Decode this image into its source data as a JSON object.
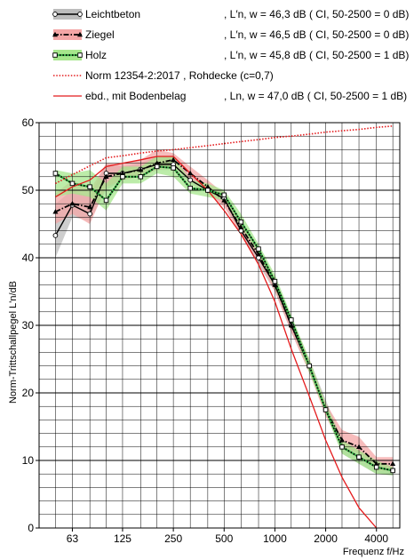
{
  "chart_data": {
    "type": "line",
    "xlabel": "Frequenz f/Hz",
    "ylabel": "Norm-Trittschallpegel L'n/dB",
    "x_scale": "log",
    "xlim": [
      40,
      5500
    ],
    "ylim": [
      0,
      60
    ],
    "grid": true,
    "x_ticks": [
      63,
      125,
      250,
      500,
      1000,
      2000,
      4000
    ],
    "x_tick_labels": [
      "63",
      "125",
      "250",
      "500",
      "1000",
      "2000",
      "4000"
    ],
    "y_ticks": [
      0,
      10,
      20,
      30,
      40,
      50,
      60
    ],
    "legend_position": "top",
    "frequencies": [
      50,
      63,
      80,
      100,
      125,
      160,
      200,
      250,
      315,
      400,
      500,
      630,
      800,
      1000,
      1250,
      1600,
      2000,
      2500,
      3150,
      4000,
      5000
    ],
    "series": [
      {
        "name": "Leichtbeton",
        "legend_value": ", L′n, w = 46,3 dB ( CI, 50-2500 = 0 dB)",
        "color": "#000000",
        "band_color": "#bdbdbd",
        "style": "solid",
        "marker": "open-circle",
        "values": [
          43.3,
          47.8,
          46.5,
          52.5,
          52.5,
          53.1,
          53.8,
          53.8,
          51.5,
          50.0,
          48.8,
          44.0,
          40.0,
          36.0,
          30.0,
          24.0,
          17.5,
          12.0,
          10.5,
          9.0,
          8.5
        ],
        "band_low": [
          40.0,
          46.0,
          45.5,
          50.0,
          51.5,
          52.0,
          53.0,
          53.0,
          51.0,
          49.5,
          48.0,
          43.5,
          39.0,
          35.0,
          29.0,
          23.0,
          17.0,
          11.0,
          9.5,
          8.0,
          7.8
        ],
        "band_high": [
          48.0,
          50.0,
          49.0,
          54.0,
          53.5,
          54.0,
          55.0,
          55.0,
          52.0,
          50.5,
          49.5,
          45.0,
          41.0,
          37.0,
          31.0,
          25.0,
          19.0,
          13.0,
          11.5,
          10.0,
          9.0
        ]
      },
      {
        "name": "Ziegel",
        "legend_value": ", L′n, w = 46,5 dB ( CI, 50-2500 = 0 dB)",
        "color": "#000000",
        "band_color": "#f4a6a6",
        "style": "dashdot",
        "marker": "filled-triangle",
        "values": [
          46.8,
          48.0,
          47.5,
          52.0,
          52.5,
          53.0,
          54.0,
          54.5,
          52.5,
          50.5,
          48.5,
          44.5,
          40.5,
          36.0,
          30.0,
          24.0,
          17.5,
          13.0,
          12.0,
          9.5,
          9.5
        ],
        "band_low": [
          45.0,
          46.5,
          45.0,
          50.5,
          51.5,
          52.0,
          53.0,
          53.5,
          51.5,
          49.5,
          47.5,
          43.5,
          39.5,
          35.0,
          29.0,
          23.0,
          16.5,
          12.0,
          11.0,
          8.5,
          8.5
        ],
        "band_high": [
          49.5,
          51.5,
          50.0,
          54.0,
          54.0,
          54.5,
          56.0,
          55.5,
          53.5,
          51.5,
          49.5,
          45.5,
          41.5,
          37.0,
          31.0,
          25.0,
          18.5,
          14.5,
          13.5,
          10.5,
          10.5
        ]
      },
      {
        "name": "Holz",
        "legend_value": ", L′n, w = 45,8 dB ( CI, 50-2500 = 1 dB)",
        "color": "#000000",
        "accent_color": "#3cb44b",
        "band_color": "#a6e68c",
        "style": "dotted",
        "marker": "open-square",
        "values": [
          52.5,
          51.0,
          50.5,
          48.5,
          52.0,
          52.0,
          53.5,
          53.3,
          50.3,
          50.0,
          49.3,
          45.3,
          41.3,
          36.5,
          30.8,
          24.0,
          17.5,
          12.0,
          10.5,
          9.0,
          8.5
        ],
        "band_low": [
          49.0,
          49.5,
          49.0,
          47.0,
          51.0,
          51.0,
          52.5,
          52.0,
          49.5,
          49.0,
          48.5,
          44.5,
          40.5,
          35.5,
          30.0,
          23.0,
          17.0,
          11.0,
          9.5,
          8.0,
          7.8
        ],
        "band_high": [
          53.0,
          52.5,
          53.0,
          51.0,
          53.5,
          53.5,
          55.0,
          55.0,
          51.5,
          51.0,
          50.0,
          46.5,
          42.0,
          37.5,
          31.5,
          25.0,
          18.5,
          13.0,
          11.5,
          10.0,
          9.0
        ]
      },
      {
        "name": "Norm 12354-2:2017 , Rohdecke (c=0,7)",
        "legend_value": "",
        "color": "#e41a1c",
        "style": "dotted",
        "marker": "none",
        "values": [
          51.0,
          52.3,
          53.6,
          54.8,
          55.1,
          55.5,
          55.8,
          56.0,
          56.3,
          56.6,
          56.9,
          57.2,
          57.5,
          57.8,
          58.0,
          58.3,
          58.6,
          58.8,
          59.0,
          59.3,
          59.5
        ]
      },
      {
        "name": "ebd., mit Bodenbelag",
        "legend_value": ", Ln, w = 47,0 dB ( CI, 50-2500 = 1 dB)",
        "color": "#e41a1c",
        "style": "solid",
        "marker": "none",
        "values": [
          49.0,
          50.5,
          51.5,
          53.5,
          54.0,
          54.5,
          55.0,
          55.0,
          52.5,
          50.0,
          47.0,
          43.5,
          39.0,
          33.5,
          26.5,
          19.5,
          13.0,
          7.5,
          3.0,
          0.0,
          null
        ]
      }
    ]
  }
}
